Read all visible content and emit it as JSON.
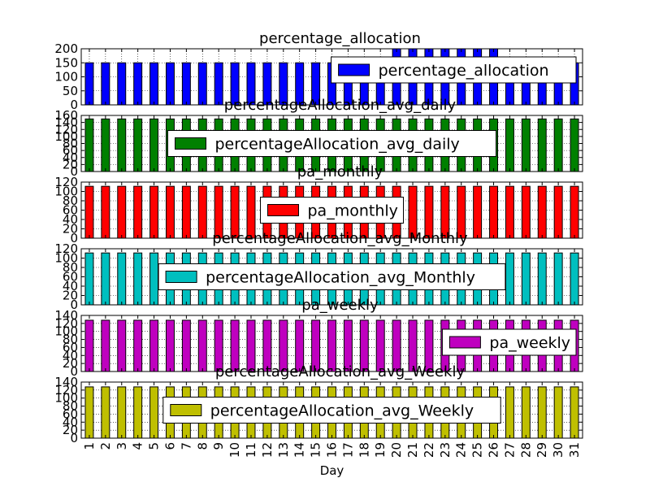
{
  "chart_data": {
    "type": "bar",
    "layout": "stacked-subplots",
    "grid": true,
    "x": {
      "label": "Day",
      "categories": [
        "1",
        "2",
        "3",
        "4",
        "5",
        "6",
        "7",
        "8",
        "9",
        "10",
        "11",
        "12",
        "13",
        "14",
        "15",
        "16",
        "17",
        "18",
        "19",
        "20",
        "21",
        "22",
        "23",
        "24",
        "25",
        "26",
        "27",
        "28",
        "29",
        "30",
        "31"
      ]
    },
    "subplots": [
      {
        "title": "percentage_allocation",
        "legend": "percentage_allocation",
        "legend_position": "upper right",
        "color": "#0000ff",
        "ylim": [
          0,
          200
        ],
        "yticks": [
          0,
          50,
          100,
          150,
          200
        ],
        "values": [
          150,
          150,
          150,
          150,
          150,
          150,
          150,
          150,
          150,
          150,
          150,
          150,
          150,
          150,
          150,
          150,
          150,
          150,
          150,
          200,
          200,
          200,
          200,
          200,
          200,
          200,
          150,
          150,
          150,
          150,
          150
        ]
      },
      {
        "title": "percentageAllocation_avg_daily",
        "legend": "percentageAllocation_avg_daily",
        "legend_position": "center",
        "color": "#008000",
        "ylim": [
          0,
          160
        ],
        "yticks": [
          0,
          20,
          40,
          60,
          80,
          100,
          120,
          140,
          160
        ],
        "values": [
          150,
          150,
          150,
          150,
          150,
          150,
          150,
          150,
          150,
          150,
          150,
          150,
          150,
          150,
          150,
          150,
          150,
          150,
          150,
          150,
          150,
          150,
          150,
          150,
          150,
          150,
          150,
          150,
          150,
          150,
          150
        ]
      },
      {
        "title": "pa_monthly",
        "legend": "pa_monthly",
        "legend_position": "center",
        "color": "#ff0000",
        "ylim": [
          0,
          120
        ],
        "yticks": [
          0,
          20,
          40,
          60,
          80,
          100,
          120
        ],
        "values": [
          111,
          111,
          111,
          111,
          111,
          111,
          111,
          111,
          111,
          111,
          111,
          111,
          111,
          111,
          111,
          111,
          111,
          111,
          111,
          111,
          111,
          111,
          111,
          111,
          111,
          111,
          111,
          111,
          111,
          111,
          111
        ]
      },
      {
        "title": "percentageAllocation_avg_Monthly",
        "legend": "percentageAllocation_avg_Monthly",
        "legend_position": "center",
        "color": "#00bfbf",
        "ylim": [
          0,
          120
        ],
        "yticks": [
          0,
          20,
          40,
          60,
          80,
          100,
          120
        ],
        "values": [
          111,
          111,
          111,
          111,
          111,
          111,
          111,
          111,
          111,
          111,
          111,
          111,
          111,
          111,
          111,
          111,
          111,
          111,
          111,
          111,
          111,
          111,
          111,
          111,
          111,
          111,
          111,
          111,
          111,
          111,
          111
        ]
      },
      {
        "title": "pa_weekly",
        "legend": "pa_weekly",
        "legend_position": "lower right",
        "color": "#bf00bf",
        "ylim": [
          0,
          140
        ],
        "yticks": [
          0,
          20,
          40,
          60,
          80,
          100,
          120,
          140
        ],
        "values": [
          128,
          128,
          128,
          128,
          128,
          128,
          128,
          128,
          128,
          128,
          128,
          128,
          128,
          128,
          128,
          128,
          128,
          128,
          128,
          128,
          128,
          128,
          128,
          128,
          128,
          128,
          128,
          128,
          128,
          128,
          128
        ]
      },
      {
        "title": "percentageAllocation_avg_Weekly",
        "legend": "percentageAllocation_avg_Weekly",
        "legend_position": "center",
        "color": "#bfbf00",
        "ylim": [
          0,
          140
        ],
        "yticks": [
          0,
          20,
          40,
          60,
          80,
          100,
          120,
          140
        ],
        "values": [
          128,
          128,
          128,
          128,
          128,
          128,
          128,
          128,
          128,
          128,
          128,
          128,
          128,
          128,
          128,
          128,
          128,
          128,
          128,
          128,
          128,
          128,
          128,
          128,
          128,
          128,
          128,
          128,
          128,
          128,
          128
        ]
      }
    ]
  }
}
